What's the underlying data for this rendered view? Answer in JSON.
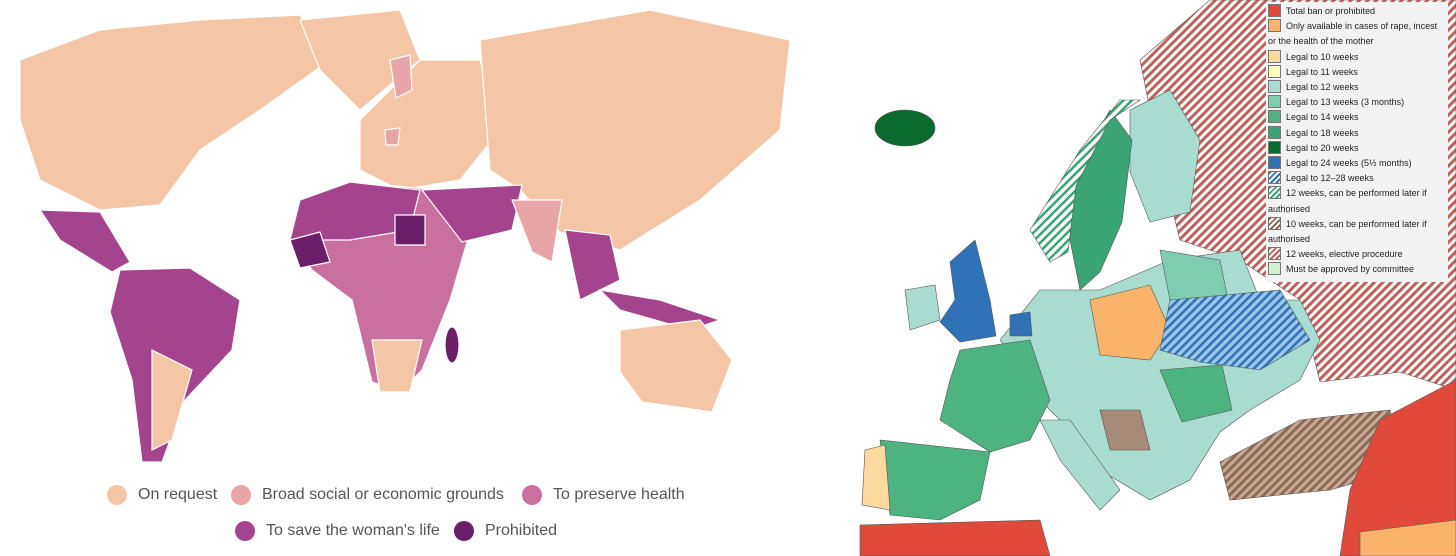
{
  "world_legend": {
    "items": [
      {
        "label": "On request",
        "color": "#f5c6a5"
      },
      {
        "label": "Broad social or economic grounds",
        "color": "#e8a5a8"
      },
      {
        "label": "To preserve health",
        "color": "#c9709f"
      },
      {
        "label": "To save the woman's life",
        "color": "#a5448e"
      },
      {
        "label": "Prohibited",
        "color": "#6b1f6b"
      }
    ]
  },
  "europe_legend": {
    "items": [
      {
        "label": "Total ban or prohibited",
        "color": "#e04a3a"
      },
      {
        "label": "Only available in cases of rape, incest or the health of the mother",
        "color": "#f9b36a"
      },
      {
        "label": "Legal to 10 weeks",
        "color": "#fdd9a0"
      },
      {
        "label": "Legal to 11 weeks",
        "color": "#ffffc0"
      },
      {
        "label": "Legal to 12 weeks",
        "color": "#a8dcd0"
      },
      {
        "label": "Legal to 13 weeks (3 months)",
        "color": "#7fcdb0"
      },
      {
        "label": "Legal to 14 weeks",
        "color": "#4db380"
      },
      {
        "label": "Legal to 18 weeks",
        "color": "#3aa574"
      },
      {
        "label": "Legal to 20 weeks",
        "color": "#0b6b2e"
      },
      {
        "label": "Legal to 24 weeks (5½ months)",
        "color": "#2f72b8"
      },
      {
        "label": "Legal to 12–28 weeks",
        "color": "#2f72b8",
        "pattern": "hatch"
      },
      {
        "label": "12 weeks, can be performed later if authorised",
        "color": "#3aa574",
        "pattern": "hatch"
      },
      {
        "label": "10 weeks, can be performed later if authorised",
        "color": "#8b6a58",
        "pattern": "hatch"
      },
      {
        "label": "12 weeks, elective procedure",
        "color": "#c0605a",
        "pattern": "hatch"
      },
      {
        "label": "Must be approved by committee",
        "color": "#d4f0d0"
      }
    ]
  }
}
